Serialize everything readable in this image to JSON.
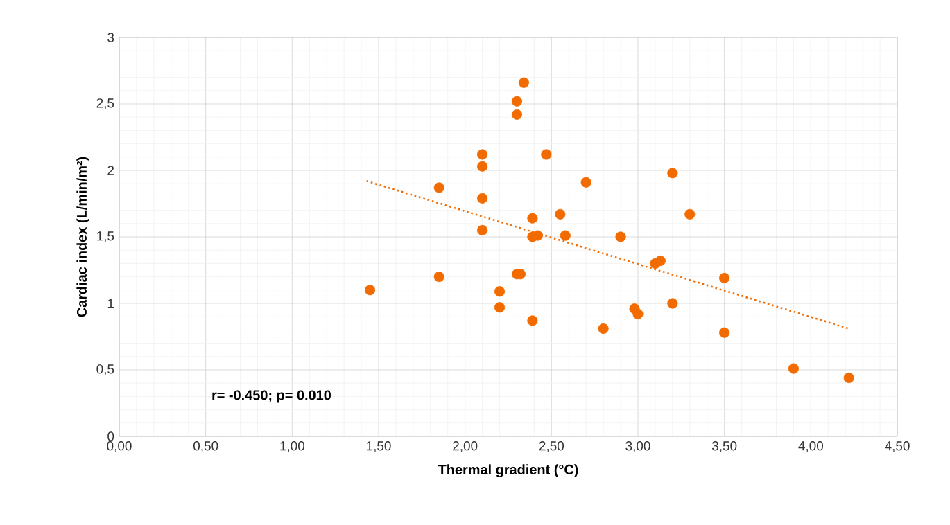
{
  "chart_data": {
    "type": "scatter",
    "xlabel": "Thermal gradient (°C)",
    "ylabel": "Cardiac index (L/min/m²)",
    "xlim": [
      0,
      4.5
    ],
    "ylim": [
      0,
      3
    ],
    "xticks": [
      {
        "value": 0,
        "label": "0,00"
      },
      {
        "value": 0.5,
        "label": "0,50"
      },
      {
        "value": 1,
        "label": "1,00"
      },
      {
        "value": 1.5,
        "label": "1,50"
      },
      {
        "value": 2,
        "label": "2,00"
      },
      {
        "value": 2.5,
        "label": "2,50"
      },
      {
        "value": 3,
        "label": "3,00"
      },
      {
        "value": 3.5,
        "label": "3,50"
      },
      {
        "value": 4,
        "label": "4,00"
      },
      {
        "value": 4.5,
        "label": "4,50"
      }
    ],
    "yticks": [
      0,
      {
        "value": 0.5,
        "label": "0,5"
      },
      1,
      {
        "value": 1.5,
        "label": "1,5"
      },
      2,
      {
        "value": 2.5,
        "label": "2,5"
      },
      3
    ],
    "grid": true,
    "series": [
      {
        "color": "#f26b00",
        "marker": "circle",
        "x": [
          1.45,
          1.85,
          1.85,
          2.1,
          2.1,
          2.1,
          2.1,
          2.2,
          2.2,
          2.3,
          2.3,
          2.3,
          2.32,
          2.34,
          2.39,
          2.39,
          2.39,
          2.42,
          2.47,
          2.55,
          2.58,
          2.7,
          2.8,
          2.9,
          2.98,
          3.0,
          3.1,
          3.13,
          3.2,
          3.2,
          3.3,
          3.5,
          3.5,
          3.9,
          4.22
        ],
        "values": [
          1.1,
          1.87,
          1.2,
          2.12,
          2.03,
          1.79,
          1.55,
          1.09,
          0.97,
          2.52,
          2.42,
          1.22,
          1.22,
          2.66,
          1.64,
          1.5,
          0.87,
          1.51,
          2.12,
          1.67,
          1.51,
          1.91,
          0.81,
          1.5,
          0.96,
          0.92,
          1.3,
          1.32,
          1.98,
          1.0,
          1.67,
          1.19,
          0.78,
          0.51,
          0.44
        ]
      },
      {
        "color": "#f26b00",
        "type": "line",
        "line_style": "dotted",
        "x": [
          1.43,
          4.22
        ],
        "values": [
          1.92,
          0.81
        ]
      }
    ],
    "annotations": [
      "r= -0.450; p= 0.010"
    ]
  }
}
